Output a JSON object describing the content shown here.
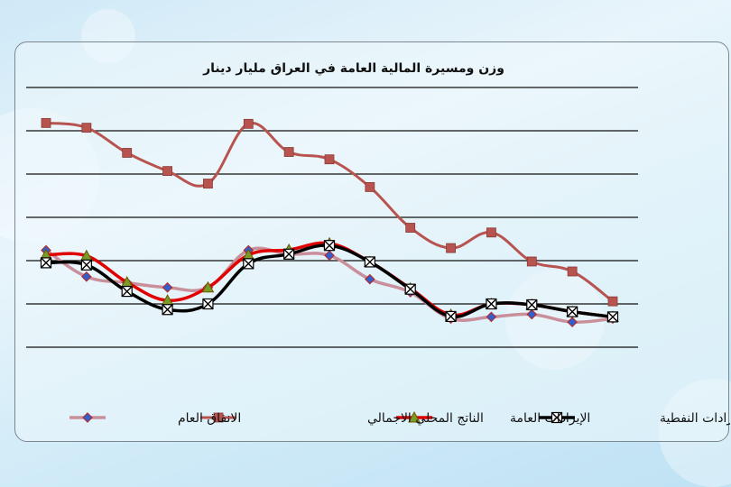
{
  "chart_data": {
    "type": "line",
    "title": "وزن ومسيرة المالية العامة في العراق   مليار دينار",
    "grid": true,
    "legend_position": "bottom",
    "x": [
      1,
      2,
      3,
      4,
      5,
      6,
      7,
      8,
      9,
      10,
      11,
      12,
      13,
      14,
      15
    ],
    "ylim": [
      0,
      6
    ],
    "series": [
      {
        "name": "الإيرادات النفطية",
        "color": "#000000",
        "marker": "x-box",
        "values": [
          1.95,
          1.9,
          1.29,
          0.87,
          1.0,
          1.93,
          2.15,
          2.35,
          1.97,
          1.34,
          0.71,
          1.0,
          0.98,
          0.82,
          0.7
        ]
      },
      {
        "name": "الإيرادات العامة",
        "color": "#e00000",
        "marker": "triangle",
        "values": [
          2.13,
          2.11,
          1.5,
          1.08,
          1.38,
          2.13,
          2.25,
          2.4,
          1.97,
          1.36,
          0.75,
          1.0,
          0.98,
          0.82,
          0.7
        ]
      },
      {
        "name": "الناتج المحلي الاجمالي",
        "color": "#b85450",
        "marker": "square",
        "values": [
          5.18,
          5.07,
          4.49,
          4.07,
          3.78,
          5.16,
          4.51,
          4.34,
          3.7,
          2.76,
          2.29,
          2.65,
          1.98,
          1.75,
          1.06
        ]
      },
      {
        "name": "الانفاق العام",
        "color": "#c98f9a",
        "marker": "diamond",
        "values": [
          2.24,
          1.63,
          1.49,
          1.38,
          1.38,
          2.24,
          2.15,
          2.12,
          1.57,
          1.27,
          0.66,
          0.7,
          0.76,
          0.58,
          0.66
        ]
      }
    ]
  }
}
